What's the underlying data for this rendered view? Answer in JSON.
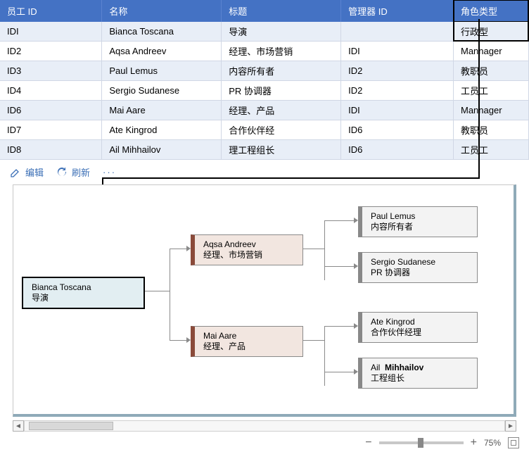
{
  "table": {
    "columns": [
      "员工 ID",
      "名称",
      "标题",
      "管理器 ID",
      "角色类型"
    ],
    "highlight_col": 4,
    "highlight_row": 0,
    "rows": [
      [
        "IDI",
        "Bianca Toscana",
        "导演",
        "",
        "行政型"
      ],
      [
        "ID2",
        "Aqsa Andreev",
        "经理、市场营销",
        "IDI",
        "Mannager"
      ],
      [
        "ID3",
        "Paul Lemus",
        "内容所有者",
        "ID2",
        "教职员"
      ],
      [
        "ID4",
        "Sergio Sudanese",
        "PR 协调器",
        "ID2",
        "工员工"
      ],
      [
        "ID6",
        "Mai Aare",
        "经理、产品",
        "IDI",
        "Mannager"
      ],
      [
        "ID7",
        "Ate Kingrod",
        "合作伙伴经",
        "ID6",
        "教职员"
      ],
      [
        "ID8",
        "Ail Mihhailov",
        "理工程组长",
        "ID6",
        "工员工"
      ]
    ]
  },
  "toolbar": {
    "edit": "编辑",
    "refresh": "刷新"
  },
  "chart": {
    "root": {
      "name": "Bianca Toscana",
      "title": "导演"
    },
    "m1": {
      "name": "Aqsa Andreev",
      "title": "经理、市场营销"
    },
    "m2": {
      "name": "Mai Aare",
      "title": "经理、产品"
    },
    "l1": {
      "name": "Paul Lemus",
      "title": "内容所有者"
    },
    "l2": {
      "name": "Sergio Sudanese",
      "title": "PR 协调器"
    },
    "l3": {
      "name": "Ate Kingrod",
      "title": "合作伙伴经理"
    },
    "l4_a": "Ail",
    "l4_b": "Mihhailov",
    "l4_t": "工程组长",
    "colors": {
      "root_bg": "#e2eef2",
      "mgr_bg": "#f2e6e0",
      "mgr_bar": "#8a4a3a",
      "leaf_bg": "#f3f3f3",
      "leaf_bar": "#888888"
    }
  },
  "zoom": {
    "label": "75%"
  }
}
